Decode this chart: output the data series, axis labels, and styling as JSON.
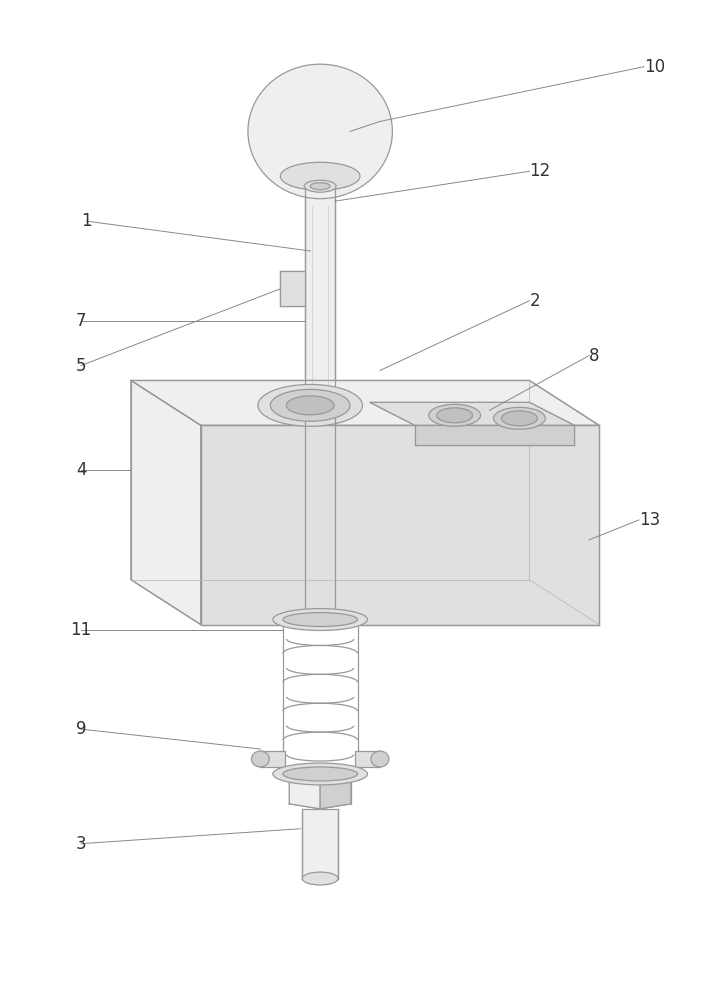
{
  "bg_color": "#ffffff",
  "line_color": "#999999",
  "lw": 0.9,
  "font_size": 12,
  "anno_color": "#333333",
  "leader_color": "#888888",
  "face_light": "#efefef",
  "face_mid": "#e0e0e0",
  "face_dark": "#d0d0d0",
  "face_darker": "#c0c0c0"
}
